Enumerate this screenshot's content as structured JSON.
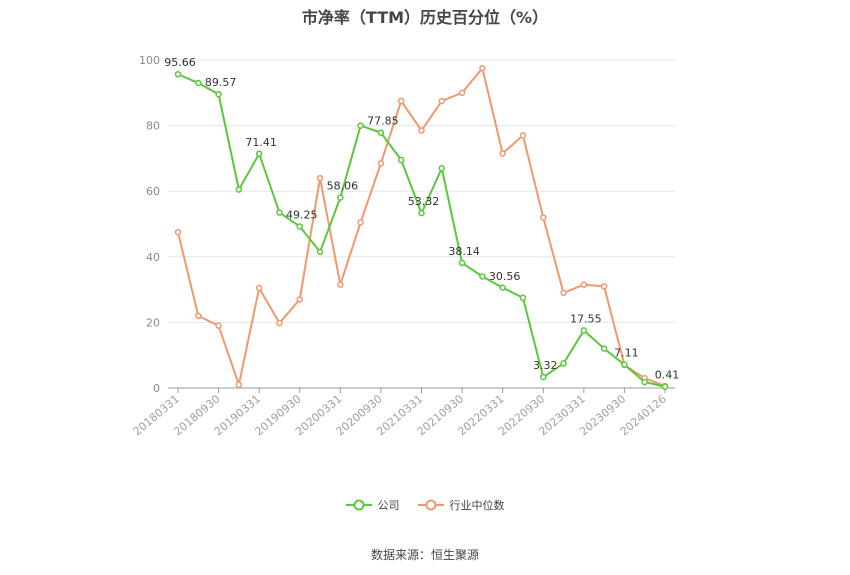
{
  "chart_data": {
    "type": "line",
    "title": "市净率（TTM）历史百分位（%）",
    "ylim": [
      0,
      100
    ],
    "yticks": [
      0,
      20,
      40,
      60,
      80,
      100
    ],
    "x_tick_labels": [
      "20180331",
      "20180930",
      "20190331",
      "20190930",
      "20200331",
      "20200930",
      "20210331",
      "20210930",
      "20220331",
      "20220930",
      "20230331",
      "20230930",
      "20240126"
    ],
    "x_tick_positions": [
      0,
      2,
      4,
      6,
      8,
      10,
      12,
      14,
      16,
      18,
      20,
      22,
      24
    ],
    "grid": true,
    "legend_position": "bottom",
    "series": [
      {
        "name": "公司",
        "color": "#5ac83c",
        "values": [
          95.66,
          93.0,
          89.57,
          60.5,
          71.41,
          53.5,
          49.25,
          41.5,
          58.06,
          80.0,
          77.85,
          69.5,
          53.32,
          67.0,
          38.14,
          34.0,
          30.56,
          27.5,
          3.32,
          7.5,
          17.55,
          12.0,
          7.11,
          1.8,
          0.41
        ],
        "labels": {
          "0": "95.66",
          "2": "89.57",
          "4": "71.41",
          "6": "49.25",
          "8": "58.06",
          "10": "77.85",
          "12": "53.32",
          "14": "38.14",
          "16": "30.56",
          "18": "3.32",
          "20": "17.55",
          "22": "7.11",
          "24": "0.41"
        }
      },
      {
        "name": "行业中位数",
        "color": "#f0986e",
        "values": [
          47.5,
          22.0,
          19.0,
          1.0,
          30.5,
          19.8,
          27.0,
          64.0,
          31.5,
          50.5,
          68.5,
          87.5,
          78.5,
          87.5,
          90.0,
          97.5,
          71.5,
          77.0,
          52.0,
          29.0,
          31.5,
          31.0,
          7.0,
          3.0,
          0.6
        ],
        "labels": {}
      }
    ]
  },
  "legend": {
    "company": "公司",
    "industry": "行业中位数"
  },
  "source": "数据来源：恒生聚源"
}
